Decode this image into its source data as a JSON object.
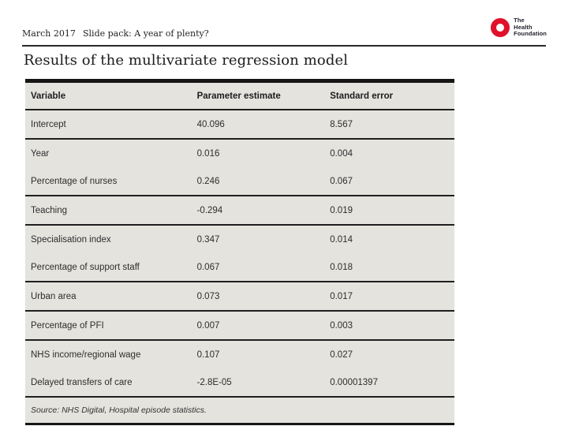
{
  "header": {
    "date": "March 2017",
    "slide_pack": "Slide pack: A year of plenty?",
    "logo": {
      "lines": [
        "The",
        "Health",
        "Foundation"
      ],
      "brand_red": "#e0112b"
    }
  },
  "title": "Results of the multivariate regression model",
  "table": {
    "columns": [
      "Variable",
      "Parameter estimate",
      "Standard error"
    ],
    "rows": [
      {
        "variable": "Intercept",
        "estimate": "40.096",
        "std_error": "8.567"
      },
      {
        "variable": "Year",
        "estimate": "0.016",
        "std_error": "0.004"
      },
      {
        "variable": "Percentage of nurses",
        "estimate": "0.246",
        "std_error": "0.067"
      },
      {
        "variable": "Teaching",
        "estimate": "-0.294",
        "std_error": "0.019"
      },
      {
        "variable": "Specialisation index",
        "estimate": "0.347",
        "std_error": "0.014"
      },
      {
        "variable": "Percentage of support staff",
        "estimate": "0.067",
        "std_error": "0.018"
      },
      {
        "variable": "Urban area",
        "estimate": "0.073",
        "std_error": "0.017"
      },
      {
        "variable": "Percentage of PFI",
        "estimate": "0.007",
        "std_error": "0.003"
      },
      {
        "variable": "NHS income/regional wage",
        "estimate": "0.107",
        "std_error": "0.027"
      },
      {
        "variable": "Delayed transfers of care",
        "estimate": "-2.8E-05",
        "std_error": "0.00001397"
      }
    ],
    "source": "Source: NHS Digital, Hospital episode statistics."
  },
  "colors": {
    "brand_red": "#e0112b",
    "table_bg": "#e4e3de",
    "rule": "#2b2b2b"
  }
}
